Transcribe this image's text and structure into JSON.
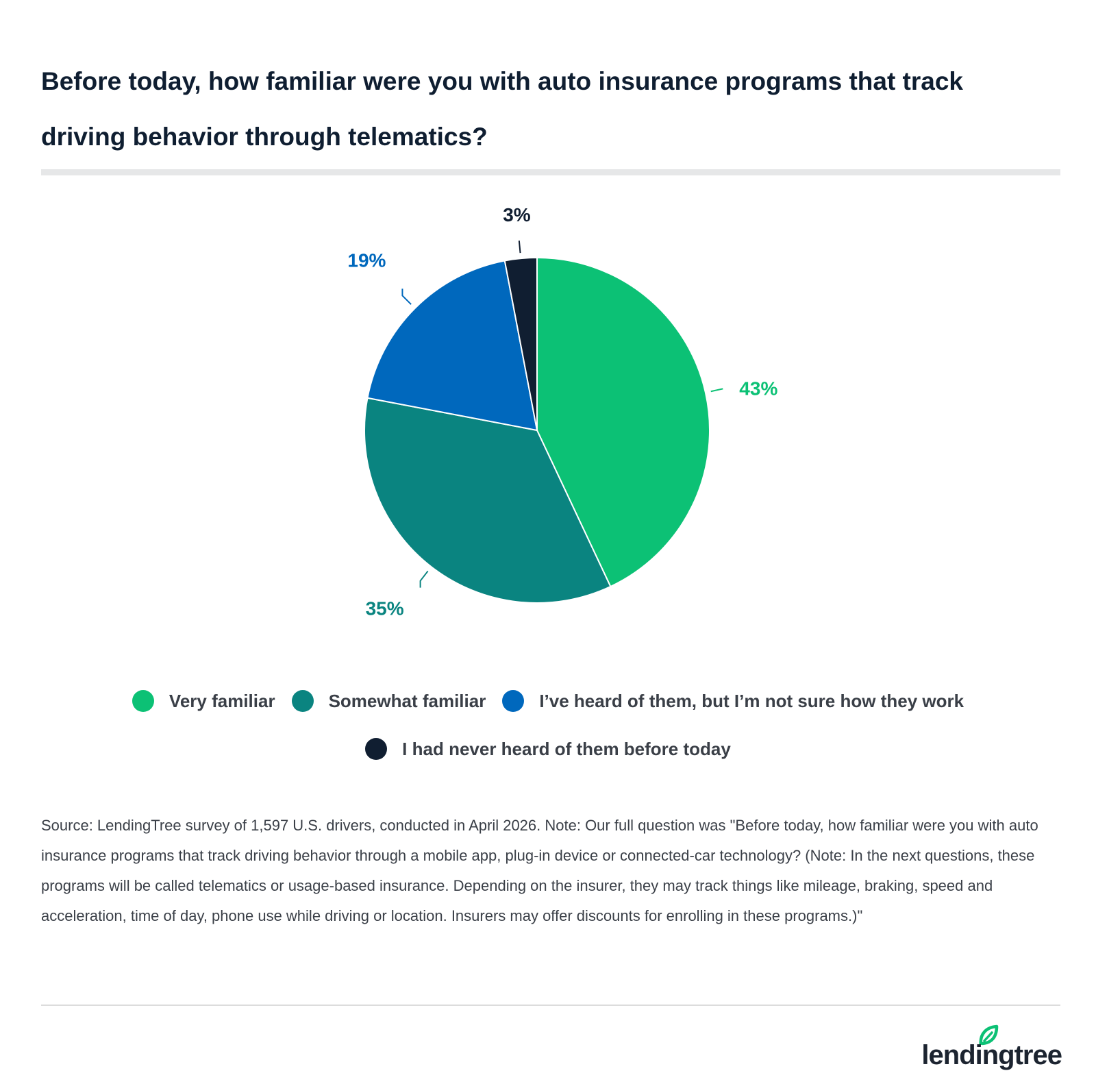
{
  "chart_data": {
    "type": "pie",
    "title": "Before today, how familiar were you with auto insurance programs that track driving behavior through telematics?",
    "categories": [
      "Very familiar",
      "Somewhat familiar",
      "I’ve heard of them, but I’m not sure how they work",
      "I had never heard of them before today"
    ],
    "values": [
      43,
      35,
      19,
      3
    ],
    "value_labels": [
      "43%",
      "35%",
      "19%",
      "3%"
    ],
    "colors": [
      "#0cc175",
      "#0a8480",
      "#0068bd",
      "#101e31"
    ],
    "legend_position": "bottom"
  },
  "note": "Source: LendingTree survey of 1,597 U.S. drivers, conducted in April 2026. Note: Our full question was \"Before today, how familiar were you with auto insurance programs that track driving behavior through a mobile app, plug-in device or connected-car technology? (Note: In the next questions, these programs will be called telematics or usage-based insurance. Depending on the insurer, they may track things like mileage, braking, speed and acceleration, time of day, phone use while driving or location. Insurers may offer discounts for enrolling in these programs.)\"",
  "logo": {
    "text": "lendingtree"
  }
}
